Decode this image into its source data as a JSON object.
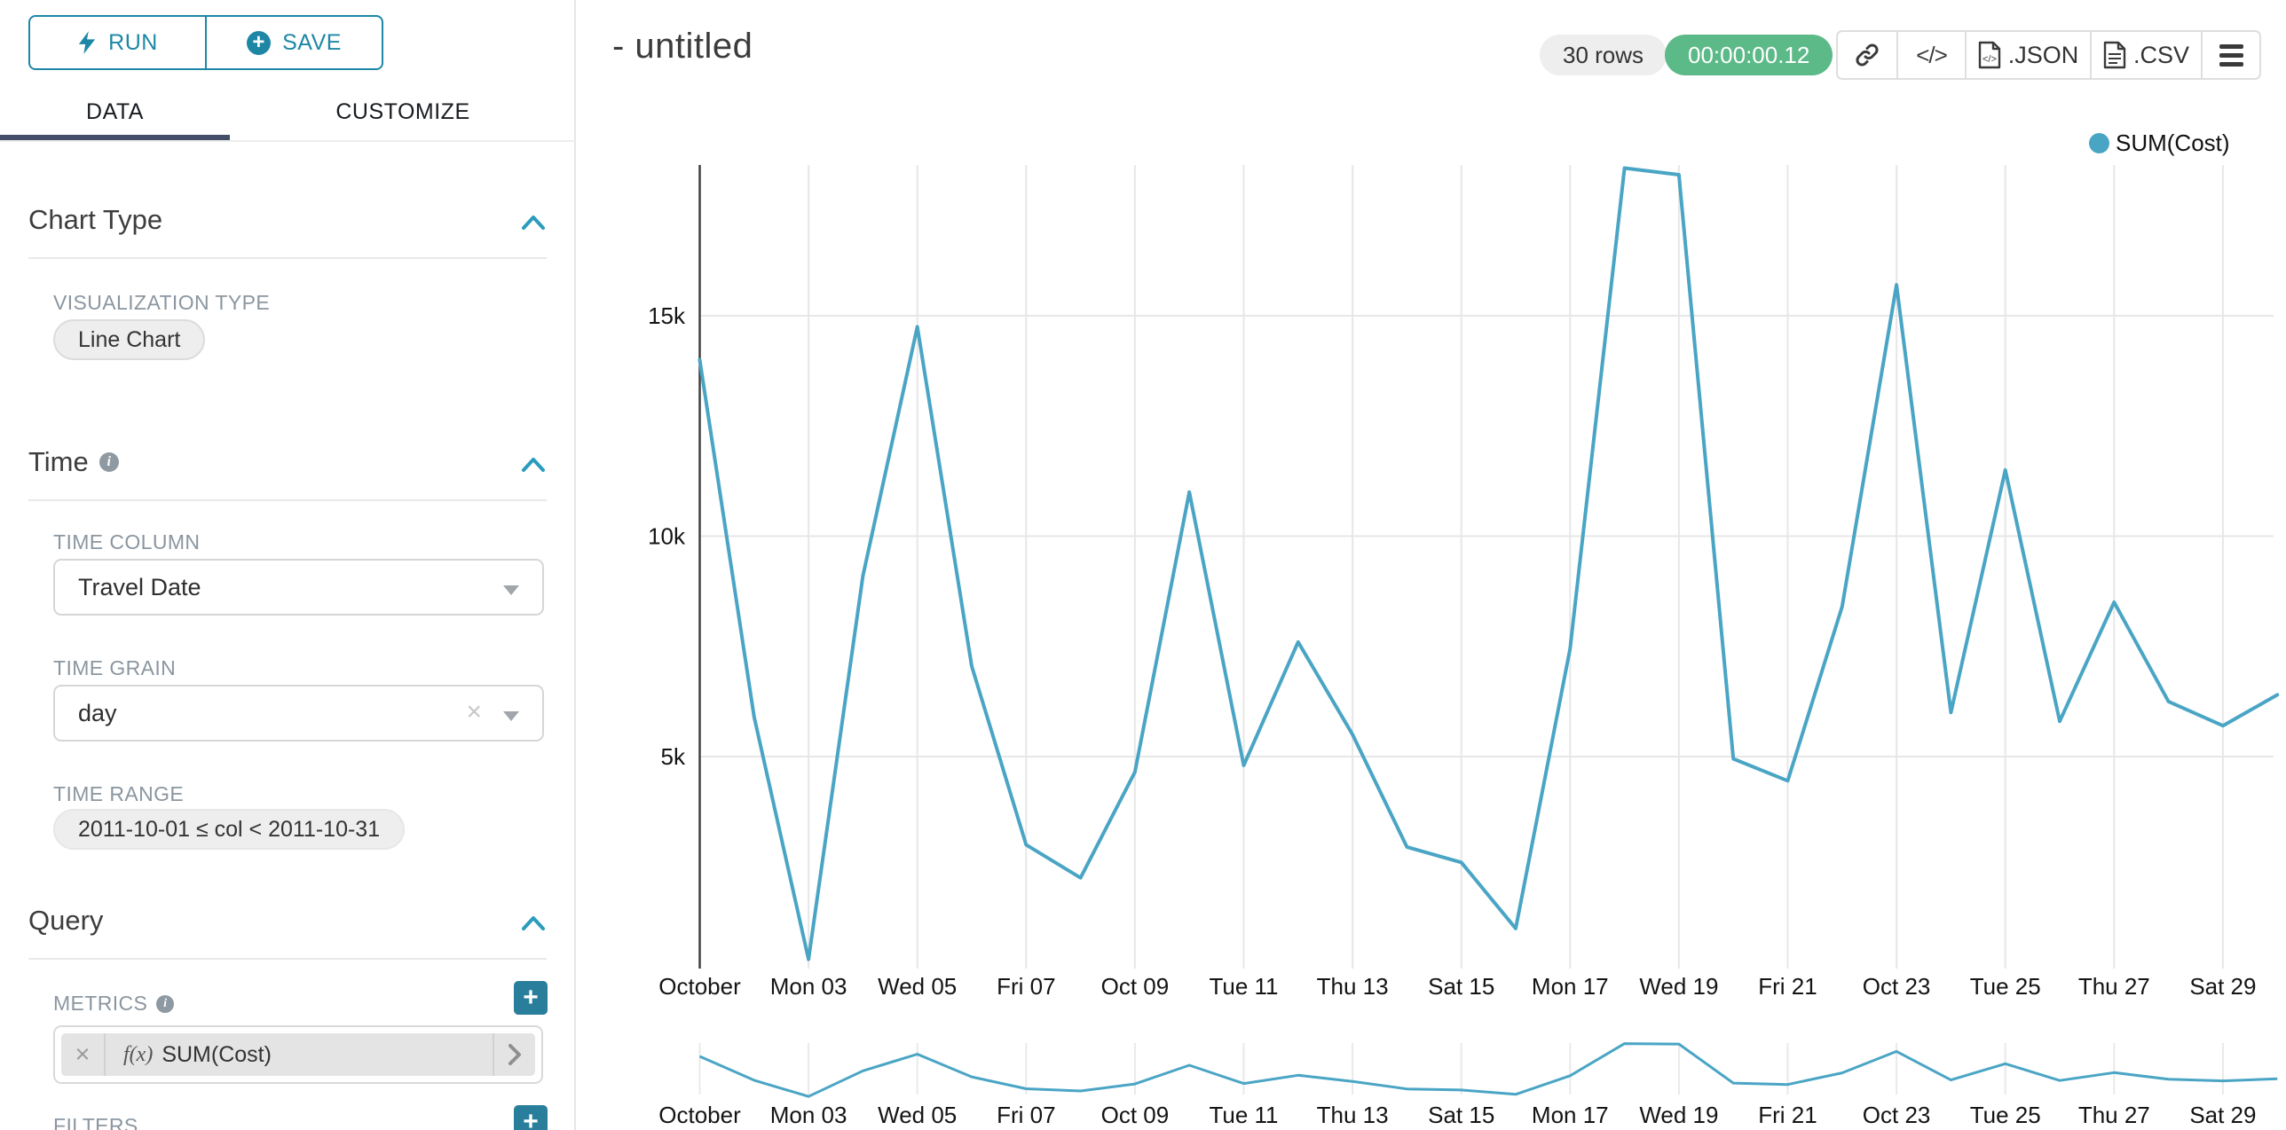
{
  "colors": {
    "accent_teal": "#1d87a5",
    "plus_button_teal": "#297e9b",
    "line_color": "#4aa5c5",
    "success_green": "#5cb988",
    "tab_underline": "#454e68"
  },
  "icons": {
    "run": "lightning-bolt-icon",
    "save": "plus-circle-icon",
    "section_collapse": "chevron-up-icon",
    "info": "info-circle-icon",
    "select_caret": "caret-down-icon",
    "clear": "x-icon",
    "metric_expand": "chevron-right-icon",
    "share": "link-icon",
    "embed": "code-icon",
    "export_json": "file-code-icon",
    "export_csv": "file-text-icon",
    "menu": "hamburger-icon"
  },
  "panel": {
    "run_label": "RUN",
    "save_label": "SAVE",
    "tabs": [
      {
        "label": "DATA"
      },
      {
        "label": "CUSTOMIZE"
      }
    ],
    "chart_type": {
      "title": "Chart Type",
      "viz_type_label": "VISUALIZATION TYPE",
      "viz_type_value": "Line Chart"
    },
    "time": {
      "title": "Time",
      "time_column_label": "TIME COLUMN",
      "time_column_value": "Travel Date",
      "time_grain_label": "TIME GRAIN",
      "time_grain_value": "day",
      "time_range_label": "TIME RANGE",
      "time_range_value": "2011-10-01 ≤ col < 2011-10-31"
    },
    "query": {
      "title": "Query",
      "metrics_label": "METRICS",
      "metric_fx": "f(x)",
      "metric_value": "SUM(Cost)",
      "filters_label": "FILTERS",
      "add_label": "+"
    }
  },
  "header": {
    "title": "- untitled",
    "rows_badge": "30 rows",
    "timer_badge": "00:00:00.12",
    "code_glyph": "</>",
    "export_json_label": ".JSON",
    "export_csv_label": ".CSV"
  },
  "legend": {
    "label": "SUM(Cost)",
    "color": "#4aa5c5"
  },
  "chart_data": {
    "type": "line",
    "title": "",
    "xlabel": "",
    "ylabel": "",
    "legend_position": "top-right",
    "grid": true,
    "x": [
      "2011-10-01",
      "2011-10-02",
      "2011-10-03",
      "2011-10-04",
      "2011-10-05",
      "2011-10-06",
      "2011-10-07",
      "2011-10-08",
      "2011-10-09",
      "2011-10-10",
      "2011-10-11",
      "2011-10-12",
      "2011-10-13",
      "2011-10-14",
      "2011-10-15",
      "2011-10-16",
      "2011-10-17",
      "2011-10-18",
      "2011-10-19",
      "2011-10-20",
      "2011-10-21",
      "2011-10-22",
      "2011-10-23",
      "2011-10-24",
      "2011-10-25",
      "2011-10-26",
      "2011-10-27",
      "2011-10-28",
      "2011-10-29",
      "2011-10-30"
    ],
    "series": [
      {
        "name": "SUM(Cost)",
        "values": [
          14000,
          5900,
          400,
          9100,
          14750,
          7050,
          3000,
          2250,
          4650,
          11000,
          4800,
          7600,
          5500,
          2950,
          2600,
          1100,
          7450,
          18350,
          18200,
          4950,
          4450,
          8400,
          15700,
          6000,
          11500,
          5800,
          8500,
          6250,
          5700,
          6400
        ]
      }
    ],
    "x_tick_labels": [
      "October",
      "Mon 03",
      "Wed 05",
      "Fri 07",
      "Oct 09",
      "Tue 11",
      "Thu 13",
      "Sat 15",
      "Mon 17",
      "Wed 19",
      "Fri 21",
      "Oct 23",
      "Tue 25",
      "Thu 27",
      "Sat 29"
    ],
    "y_ticks": [
      5000,
      10000,
      15000
    ],
    "y_tick_labels": [
      "5k",
      "10k",
      "15k"
    ],
    "ylim": [
      0,
      18500
    ],
    "has_context_mini_chart": true
  }
}
